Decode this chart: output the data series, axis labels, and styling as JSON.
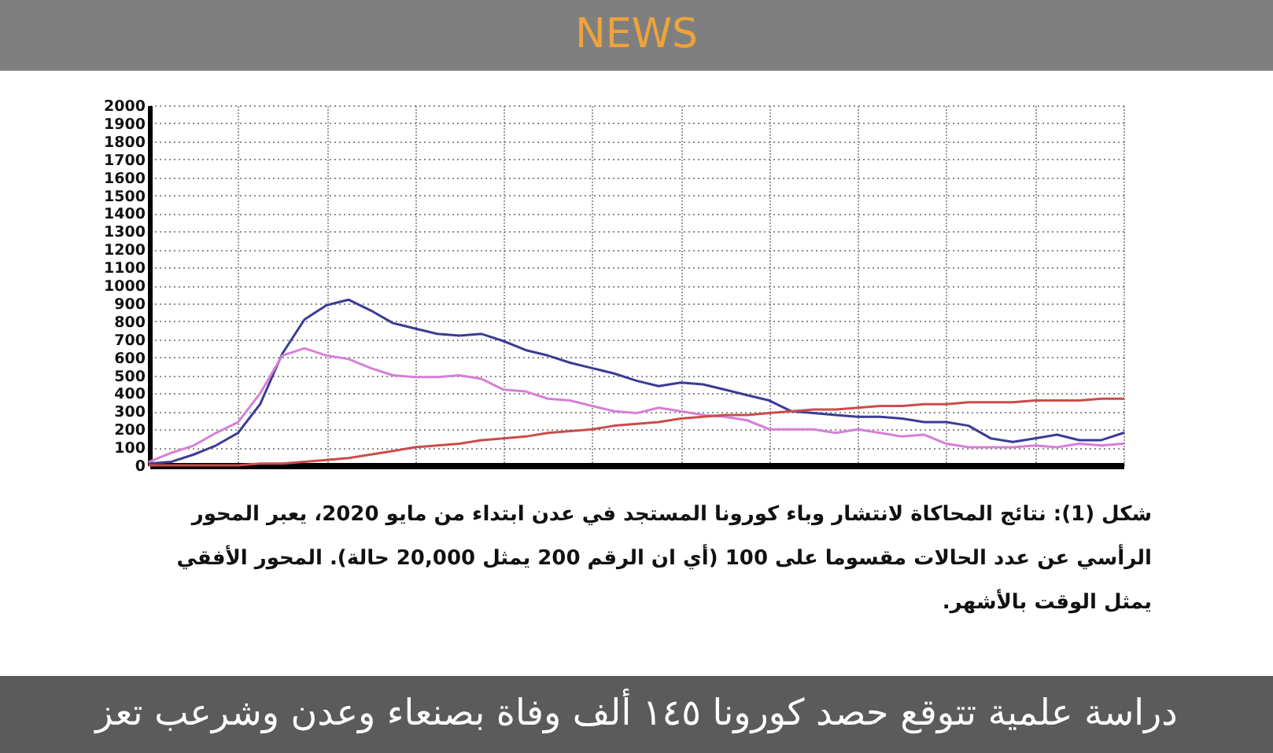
{
  "chart_data": {
    "type": "line",
    "title": "دراسة علمية تتوقع حصد كورونا ١٤٥ ألف وفاة بصنعاء وعدن وشرعب تعز",
    "annotations": [
      "NEWS",
      "شكل (1): نتائج المحاكاة لانتشار وباء كورونا المستجد في عدن ابتداء من مايو 2020، يعبر المحور الرأسي عن عدد الحالات مقسوما على 100 (أي ان الرقم 200 يمثل 20,000 حالة). المحور الأفقي يمثل الوقت بالأشهر."
    ],
    "categories": [
      null,
      null,
      null,
      null,
      null,
      null,
      null,
      null,
      null,
      null,
      null,
      null,
      null,
      null,
      null,
      null,
      null,
      null,
      null,
      null,
      null,
      null,
      null,
      null,
      null,
      null,
      null,
      null,
      null,
      null,
      null,
      null,
      null,
      null,
      null,
      null,
      null,
      null,
      null,
      null,
      null,
      null,
      null,
      null,
      null
    ],
    "series": [
      {
        "color": "#3b3b96",
        "values": [
          10,
          20,
          60,
          110,
          180,
          340,
          620,
          810,
          890,
          920,
          860,
          790,
          760,
          730,
          720,
          730,
          690,
          640,
          610,
          570,
          540,
          510,
          470,
          440,
          460,
          450,
          420,
          390,
          360,
          300,
          290,
          280,
          270,
          270,
          260,
          240,
          240,
          220,
          150,
          130,
          150,
          170,
          140,
          140,
          180
        ]
      },
      {
        "color": "#d67fd6",
        "values": [
          20,
          70,
          110,
          180,
          240,
          400,
          610,
          650,
          610,
          590,
          540,
          500,
          490,
          490,
          500,
          480,
          420,
          410,
          370,
          360,
          330,
          300,
          290,
          320,
          300,
          280,
          270,
          250,
          200,
          200,
          200,
          180,
          200,
          180,
          160,
          170,
          120,
          100,
          100,
          100,
          110,
          100,
          120,
          110,
          120
        ]
      },
      {
        "color": "#cc4b4b",
        "values": [
          0,
          0,
          0,
          0,
          0,
          10,
          10,
          20,
          30,
          40,
          60,
          80,
          100,
          110,
          120,
          140,
          150,
          160,
          180,
          190,
          200,
          220,
          230,
          240,
          260,
          270,
          280,
          280,
          290,
          300,
          310,
          310,
          320,
          330,
          330,
          340,
          340,
          350,
          350,
          350,
          360,
          360,
          360,
          370,
          370
        ]
      }
    ],
    "ylim": [
      0,
      2000
    ],
    "yticks": [
      0,
      100,
      200,
      300,
      400,
      500,
      600,
      700,
      800,
      900,
      1000,
      1100,
      1200,
      1300,
      1400,
      1500,
      1600,
      1700,
      1800,
      1900,
      2000
    ],
    "grid": true,
    "tick_labels": "y"
  }
}
